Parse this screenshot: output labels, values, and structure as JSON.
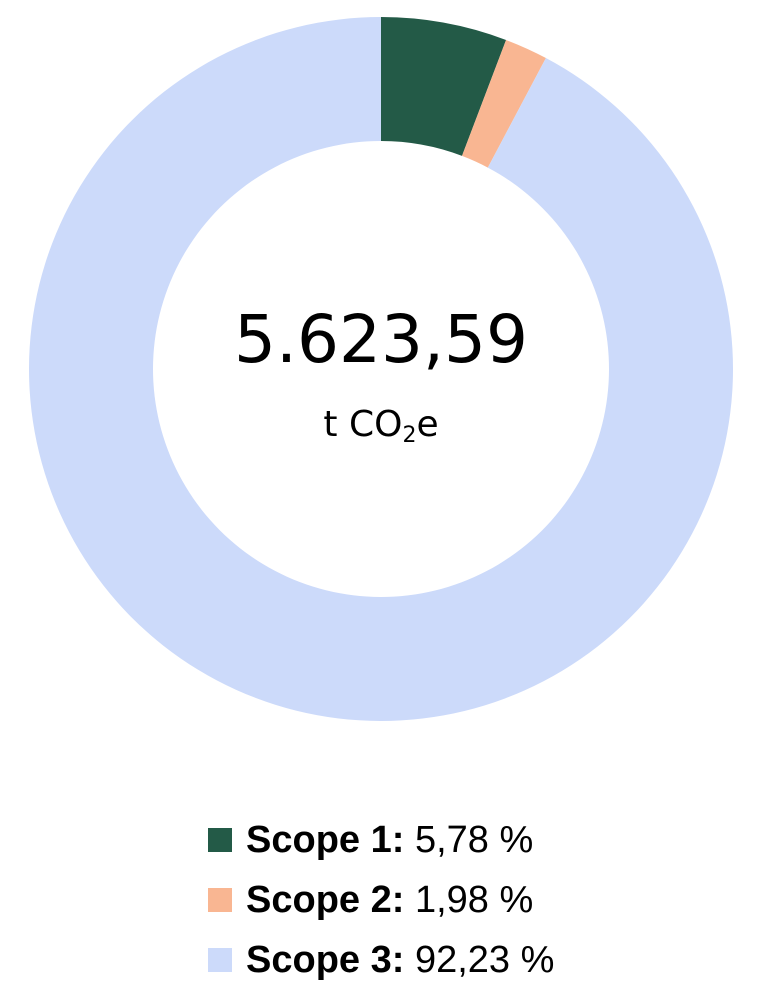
{
  "chart_data": {
    "type": "pie",
    "donut": true,
    "center": {
      "value": "5.623,59",
      "unit_prefix": "t CO",
      "unit_sub": "2",
      "unit_suffix": "e"
    },
    "slices": [
      {
        "name": "Scope 1",
        "value": 5.78,
        "label": "5,78 %",
        "color": "#235a47"
      },
      {
        "name": "Scope 2",
        "value": 1.98,
        "label": "1,98 %",
        "color": "#f9b692"
      },
      {
        "name": "Scope 3",
        "value": 92.23,
        "label": "92,23 %",
        "color": "#ccdafa"
      }
    ],
    "legend_position": "bottom"
  }
}
